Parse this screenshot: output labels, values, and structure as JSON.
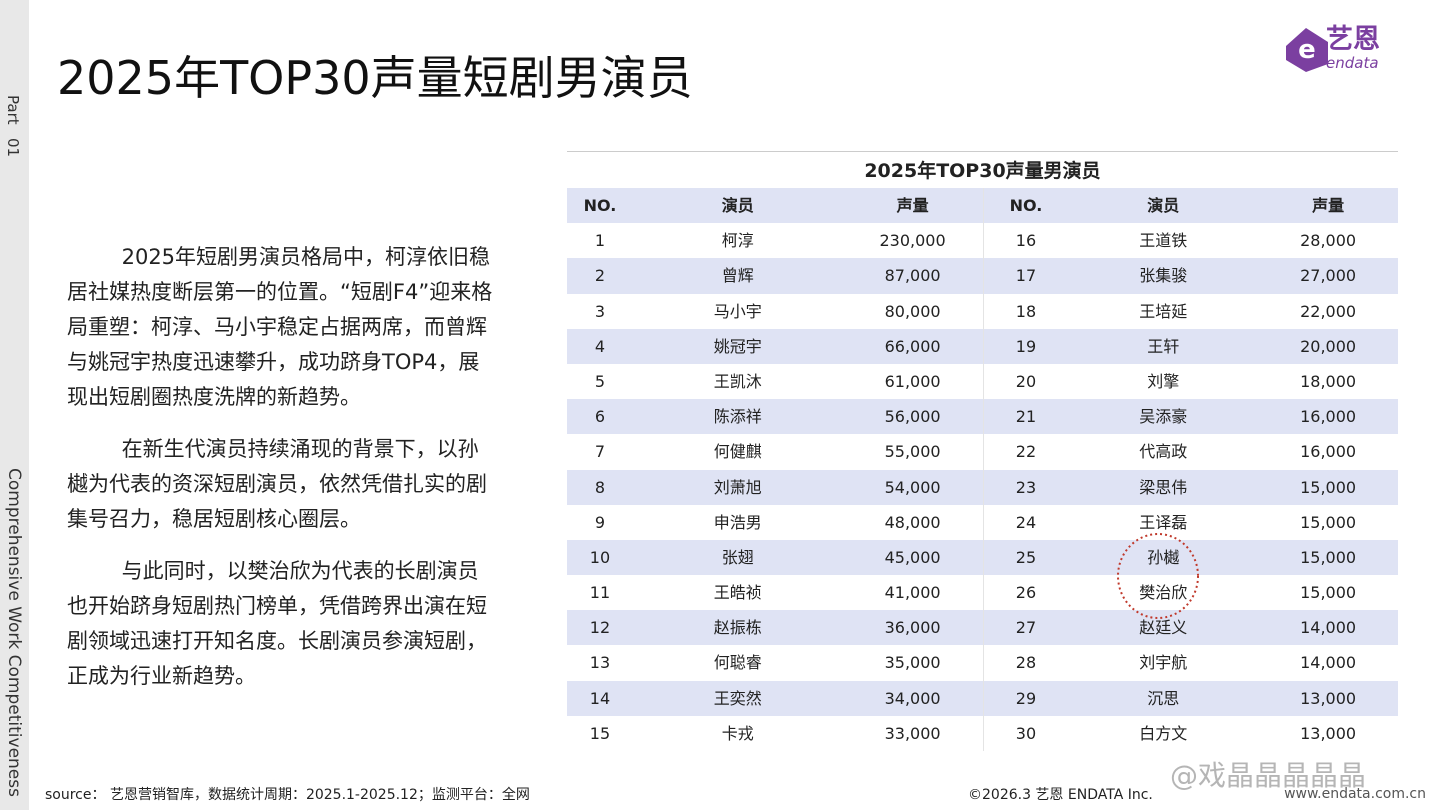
{
  "side": {
    "part": "Part",
    "number": "01",
    "caption": "Comprehensive Work Competitiveness"
  },
  "header": {
    "title": "2025年TOP30声量短剧男演员",
    "logo_cn": "艺恩",
    "logo_en": "endata"
  },
  "paragraphs": [
    "2025年短剧男演员格局中，柯淳依旧稳居社媒热度断层第一的位置。“短剧F4”迎来格局重塑：柯淳、马小宇稳定占据两席，而曾辉与姚冠宇热度迅速攀升，成功跻身TOP4，展现出短剧圈热度洗牌的新趋势。",
    "在新生代演员持续涌现的背景下，以孙樾为代表的资深短剧演员，依然凭借扎实的剧集号召力，稳居短剧核心圈层。",
    "与此同时，以樊治欣为代表的长剧演员也开始跻身短剧热门榜单，凭借跨界出演在短剧领域迅速打开知名度。长剧演员参演短剧，正成为行业新趋势。"
  ],
  "table": {
    "title": "2025年TOP30声量男演员",
    "headers": [
      "NO.",
      "演员",
      "声量",
      "NO.",
      "演员",
      "声量"
    ],
    "rows": [
      [
        "1",
        "柯淳",
        "230,000",
        "16",
        "王道铁",
        "28,000"
      ],
      [
        "2",
        "曾辉",
        "87,000",
        "17",
        "张集骏",
        "27,000"
      ],
      [
        "3",
        "马小宇",
        "80,000",
        "18",
        "王培延",
        "22,000"
      ],
      [
        "4",
        "姚冠宇",
        "66,000",
        "19",
        "王轩",
        "20,000"
      ],
      [
        "5",
        "王凯沐",
        "61,000",
        "20",
        "刘擎",
        "18,000"
      ],
      [
        "6",
        "陈添祥",
        "56,000",
        "21",
        "吴添豪",
        "16,000"
      ],
      [
        "7",
        "何健麒",
        "55,000",
        "22",
        "代高政",
        "16,000"
      ],
      [
        "8",
        "刘萧旭",
        "54,000",
        "23",
        "梁思伟",
        "15,000"
      ],
      [
        "9",
        "申浩男",
        "48,000",
        "24",
        "王译磊",
        "15,000"
      ],
      [
        "10",
        "张翅",
        "45,000",
        "25",
        "孙樾",
        "15,000"
      ],
      [
        "11",
        "王皓祯",
        "41,000",
        "26",
        "樊治欣",
        "15,000"
      ],
      [
        "12",
        "赵振栋",
        "36,000",
        "27",
        "赵廷义",
        "14,000"
      ],
      [
        "13",
        "何聪睿",
        "35,000",
        "28",
        "刘宇航",
        "14,000"
      ],
      [
        "14",
        "王奕然",
        "34,000",
        "29",
        "沉思",
        "13,000"
      ],
      [
        "15",
        "卡戎",
        "33,000",
        "30",
        "白方文",
        "13,000"
      ]
    ]
  },
  "footer": {
    "source": "source： 艺恩营销智库，数据统计周期：2025.1-2025.12；监测平台：全网",
    "copyright": "©2026.3  艺恩 ENDATA Inc.",
    "url": "www.endata.com.cn",
    "watermark": "@戏晶晶晶晶晶"
  }
}
